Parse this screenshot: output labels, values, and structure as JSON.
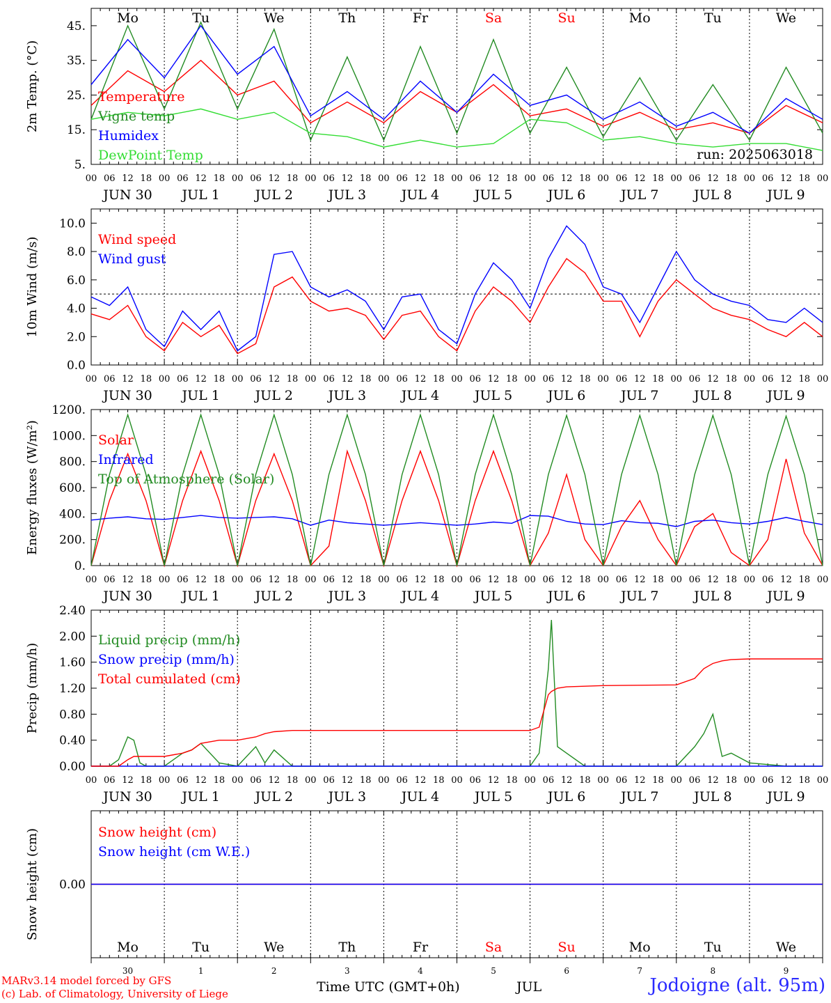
{
  "meta": {
    "run_label": "run: 2025063018",
    "model_line": "MARv3.14 model forced by GFS",
    "credit_line": "(c) Lab. of Climatology, University of Liege",
    "time_label": "Time UTC (GMT+0h)",
    "month_label": "JUL",
    "station": "Jodoigne (alt. 95m)"
  },
  "colors": {
    "red": "#ff0000",
    "green": "#228b22",
    "blue": "#0000ff",
    "lime": "#33dd33",
    "weekend": "#ff0000",
    "axis": "#000000"
  },
  "days": [
    {
      "dow": "Mo",
      "date": "JUN 30",
      "num": "30",
      "weekend": false
    },
    {
      "dow": "Tu",
      "date": "JUL  1",
      "num": "1",
      "weekend": false
    },
    {
      "dow": "We",
      "date": "JUL  2",
      "num": "2",
      "weekend": false
    },
    {
      "dow": "Th",
      "date": "JUL  3",
      "num": "3",
      "weekend": false
    },
    {
      "dow": "Fr",
      "date": "JUL  4",
      "num": "4",
      "weekend": false
    },
    {
      "dow": "Sa",
      "date": "JUL  5",
      "num": "5",
      "weekend": true
    },
    {
      "dow": "Su",
      "date": "JUL  6",
      "num": "6",
      "weekend": true
    },
    {
      "dow": "Mo",
      "date": "JUL  7",
      "num": "7",
      "weekend": false
    },
    {
      "dow": "Tu",
      "date": "JUL  8",
      "num": "8",
      "weekend": false
    },
    {
      "dow": "We",
      "date": "JUL  9",
      "num": "9",
      "weekend": false
    }
  ],
  "hour_ticks": [
    "00",
    "06",
    "12",
    "18"
  ],
  "hour_end": "00",
  "chart_data": [
    {
      "type": "line",
      "ylabel": "2m Temp. (°C)",
      "ylim": [
        5,
        50
      ],
      "yticks": [
        "5.",
        "15.",
        "25.",
        "35.",
        "45."
      ],
      "ytick_values": [
        5,
        15,
        25,
        35,
        45
      ],
      "show_days_top": true,
      "x": [
        0,
        12,
        24,
        36,
        48,
        60,
        72,
        84,
        96,
        108,
        120,
        132,
        144,
        156,
        168,
        180,
        192,
        204,
        216,
        228,
        240
      ],
      "series": [
        {
          "name": "Temperature",
          "color": "red",
          "values": [
            22,
            32,
            26,
            35,
            25,
            29,
            17,
            23,
            17,
            26,
            20,
            28,
            19,
            21,
            16,
            20,
            15,
            17,
            14,
            22,
            17
          ]
        },
        {
          "name": "Vigne temp",
          "color": "green",
          "values": [
            18,
            45,
            21,
            46,
            21,
            44,
            12,
            36,
            12,
            39,
            14,
            41,
            14,
            33,
            13,
            30,
            12,
            28,
            12,
            33,
            14
          ]
        },
        {
          "name": "Humidex",
          "color": "blue",
          "values": [
            28,
            41,
            30,
            45,
            31,
            39,
            19,
            26,
            18,
            29,
            20,
            31,
            22,
            25,
            18,
            23,
            16,
            20,
            14,
            24,
            18
          ]
        },
        {
          "name": "DewPoint Temp",
          "color": "lime",
          "values": [
            18,
            20,
            19,
            21,
            18,
            20,
            14,
            13,
            10,
            12,
            10,
            11,
            18,
            17,
            12,
            13,
            11,
            10,
            11,
            11,
            9
          ]
        }
      ]
    },
    {
      "type": "line",
      "ylabel": "10m Wind (m/s)",
      "ylim": [
        0,
        11
      ],
      "yticks": [
        "0.0",
        "2.0",
        "4.0",
        "6.0",
        "8.0",
        "10.0"
      ],
      "ytick_values": [
        0,
        2,
        4,
        6,
        8,
        10
      ],
      "reference_line": 5,
      "x": [
        0,
        6,
        12,
        18,
        24,
        30,
        36,
        42,
        48,
        54,
        60,
        66,
        72,
        78,
        84,
        90,
        96,
        102,
        108,
        114,
        120,
        126,
        132,
        138,
        144,
        150,
        156,
        162,
        168,
        174,
        180,
        186,
        192,
        198,
        204,
        210,
        216,
        222,
        228,
        234,
        240
      ],
      "series": [
        {
          "name": "Wind speed",
          "color": "red",
          "values": [
            3.6,
            3.2,
            4.2,
            2.0,
            1.0,
            3.0,
            2.0,
            2.8,
            0.8,
            1.5,
            5.5,
            6.2,
            4.5,
            3.8,
            4.0,
            3.5,
            1.8,
            3.5,
            3.8,
            2.0,
            1.0,
            3.8,
            5.5,
            4.5,
            3.0,
            5.5,
            7.5,
            6.5,
            4.5,
            4.5,
            2.0,
            4.5,
            6.0,
            5.0,
            4.0,
            3.5,
            3.2,
            2.5,
            2.0,
            3.0,
            2.0
          ]
        },
        {
          "name": "Wind gust",
          "color": "blue",
          "values": [
            4.8,
            4.2,
            5.5,
            2.5,
            1.3,
            3.8,
            2.5,
            3.8,
            1.0,
            2.0,
            7.8,
            8.0,
            5.5,
            4.8,
            5.3,
            4.5,
            2.5,
            4.8,
            5.0,
            2.5,
            1.5,
            5.0,
            7.2,
            6.0,
            4.0,
            7.5,
            9.8,
            8.5,
            5.5,
            5.0,
            3.0,
            5.5,
            8.0,
            6.0,
            5.0,
            4.5,
            4.2,
            3.2,
            3.0,
            4.0,
            3.0
          ]
        }
      ]
    },
    {
      "type": "line",
      "ylabel": "Energy fluxes (W/m²)",
      "ylim": [
        0,
        1200
      ],
      "yticks": [
        "0.",
        "200.",
        "400.",
        "600.",
        "800.",
        "1000.",
        "1200."
      ],
      "ytick_values": [
        0,
        200,
        400,
        600,
        800,
        1000,
        1200
      ],
      "x": [
        0,
        6,
        12,
        18,
        24,
        30,
        36,
        42,
        48,
        54,
        60,
        66,
        72,
        78,
        84,
        90,
        96,
        102,
        108,
        114,
        120,
        126,
        132,
        138,
        144,
        150,
        156,
        162,
        168,
        174,
        180,
        186,
        192,
        198,
        204,
        210,
        216,
        222,
        228,
        234,
        240
      ],
      "series": [
        {
          "name": "Solar",
          "color": "red",
          "values": [
            0,
            500,
            860,
            500,
            0,
            500,
            880,
            500,
            0,
            500,
            860,
            500,
            0,
            150,
            880,
            500,
            0,
            500,
            880,
            500,
            0,
            500,
            880,
            500,
            0,
            250,
            700,
            200,
            0,
            300,
            500,
            200,
            0,
            300,
            400,
            100,
            0,
            200,
            820,
            250,
            0
          ]
        },
        {
          "name": "Infrared",
          "color": "blue",
          "values": [
            350,
            365,
            375,
            360,
            355,
            370,
            385,
            370,
            365,
            370,
            375,
            360,
            310,
            350,
            330,
            320,
            310,
            320,
            330,
            320,
            310,
            320,
            335,
            325,
            385,
            380,
            340,
            320,
            315,
            345,
            330,
            325,
            300,
            340,
            350,
            330,
            320,
            340,
            370,
            340,
            315
          ]
        },
        {
          "name": "Top of Atmosphere (Solar)",
          "color": "green",
          "values": [
            0,
            700,
            1160,
            700,
            0,
            700,
            1160,
            700,
            0,
            700,
            1160,
            700,
            0,
            700,
            1160,
            700,
            0,
            700,
            1160,
            700,
            0,
            700,
            1160,
            700,
            0,
            700,
            1155,
            700,
            0,
            700,
            1155,
            700,
            0,
            700,
            1155,
            700,
            0,
            700,
            1150,
            700,
            0
          ]
        }
      ]
    },
    {
      "type": "line",
      "ylabel": "Precip (mm/h)",
      "ylim": [
        0,
        2.4
      ],
      "yticks": [
        "0.00",
        "0.40",
        "0.80",
        "1.20",
        "1.60",
        "2.00",
        "2.40"
      ],
      "ytick_values": [
        0,
        0.4,
        0.8,
        1.2,
        1.6,
        2.0,
        2.4
      ],
      "x": [
        0,
        6,
        9,
        12,
        14,
        16,
        18,
        24,
        30,
        33,
        36,
        42,
        48,
        54,
        57,
        60,
        66,
        72,
        120,
        144,
        147,
        150,
        151,
        153,
        156,
        162,
        168,
        192,
        198,
        201,
        204,
        207,
        210,
        216,
        228,
        240
      ],
      "series": [
        {
          "name": "Liquid precip (mm/h)",
          "color": "green",
          "values": [
            0,
            0,
            0.1,
            0.45,
            0.4,
            0.05,
            0,
            0,
            0.2,
            0.25,
            0.35,
            0.05,
            0,
            0.3,
            0.05,
            0.25,
            0,
            0,
            0,
            0,
            0.2,
            1.5,
            2.25,
            0.3,
            0.2,
            0,
            0,
            0,
            0.3,
            0.5,
            0.8,
            0.15,
            0.2,
            0.05,
            0,
            0
          ]
        },
        {
          "name": "Snow precip (mm/h)",
          "color": "blue",
          "values": [
            0,
            0,
            0,
            0,
            0,
            0,
            0,
            0,
            0,
            0,
            0,
            0,
            0,
            0,
            0,
            0,
            0,
            0,
            0,
            0,
            0,
            0,
            0,
            0,
            0,
            0,
            0,
            0,
            0,
            0,
            0,
            0,
            0,
            0,
            0,
            0
          ]
        },
        {
          "name": "Total cumulated (cm)",
          "color": "red",
          "values": [
            0,
            0,
            0,
            0.1,
            0.15,
            0.15,
            0.15,
            0.15,
            0.2,
            0.25,
            0.35,
            0.4,
            0.4,
            0.45,
            0.5,
            0.53,
            0.55,
            0.55,
            0.55,
            0.55,
            0.6,
            1.1,
            1.15,
            1.2,
            1.22,
            1.23,
            1.24,
            1.25,
            1.35,
            1.5,
            1.58,
            1.62,
            1.64,
            1.65,
            1.65,
            1.65
          ]
        }
      ]
    },
    {
      "type": "line",
      "ylabel": "Snow height (cm)",
      "ylim": [
        -1,
        1
      ],
      "yticks": [
        "0.00"
      ],
      "ytick_values": [
        0
      ],
      "show_days_bottom_inner": true,
      "x": [
        0,
        240
      ],
      "series": [
        {
          "name": "Snow height (cm)",
          "color": "red",
          "values": [
            0,
            0
          ]
        },
        {
          "name": "Snow height (cm W.E.)",
          "color": "blue",
          "values": [
            0,
            0
          ]
        }
      ]
    }
  ]
}
